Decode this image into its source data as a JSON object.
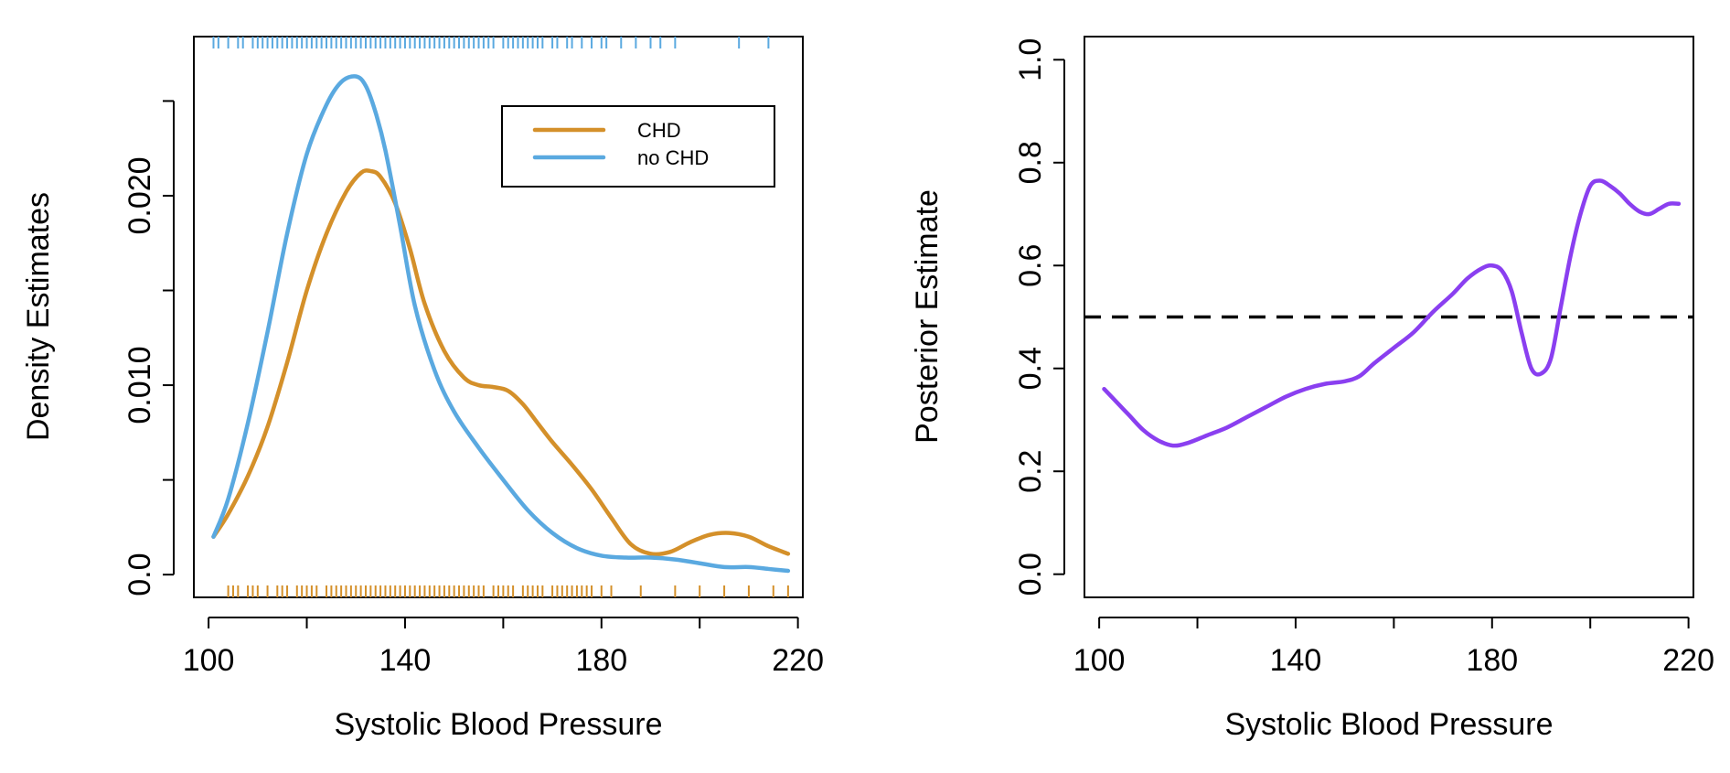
{
  "chart_data": [
    {
      "type": "line",
      "xlabel": "Systolic Blood Pressure",
      "ylabel": "Density Estimates",
      "xlim": [
        97,
        221
      ],
      "ylim": [
        -0.0012,
        0.0284
      ],
      "x_ticks": [
        100,
        120,
        140,
        160,
        180,
        200,
        220
      ],
      "x_tick_labels": [
        "100",
        "",
        "140",
        "",
        "180",
        "",
        "220"
      ],
      "y_ticks": [
        0.0,
        0.005,
        0.01,
        0.015,
        0.02,
        0.025
      ],
      "y_tick_labels": [
        "0.0",
        "",
        "0.010",
        "",
        "0.020",
        ""
      ],
      "legend": {
        "position": "top-right",
        "entries": [
          "CHD",
          "no CHD"
        ]
      },
      "series": [
        {
          "name": "CHD",
          "color": "#d4902a",
          "x": [
            101,
            104,
            108,
            112,
            116,
            120,
            124,
            128,
            131,
            133,
            135,
            138,
            141,
            144,
            148,
            152,
            155,
            158,
            161,
            164,
            167,
            170,
            174,
            178,
            182,
            186,
            190,
            194,
            198,
            202,
            206,
            210,
            214,
            218
          ],
          "y": [
            0.002,
            0.0032,
            0.0052,
            0.0078,
            0.0112,
            0.015,
            0.018,
            0.0202,
            0.0212,
            0.0213,
            0.021,
            0.0196,
            0.0172,
            0.0143,
            0.0118,
            0.0104,
            0.01,
            0.0099,
            0.0097,
            0.009,
            0.008,
            0.007,
            0.0058,
            0.0045,
            0.003,
            0.0016,
            0.0011,
            0.0012,
            0.0017,
            0.0021,
            0.0022,
            0.002,
            0.0015,
            0.0011
          ]
        },
        {
          "name": "no CHD",
          "color": "#5aa9e0",
          "x": [
            101,
            104,
            108,
            112,
            116,
            120,
            124,
            127,
            130,
            132,
            134,
            136,
            139,
            142,
            146,
            150,
            155,
            160,
            165,
            170,
            175,
            180,
            185,
            190,
            195,
            200,
            205,
            210,
            214,
            218
          ],
          "y": [
            0.002,
            0.004,
            0.008,
            0.0128,
            0.018,
            0.0222,
            0.0248,
            0.026,
            0.0263,
            0.0258,
            0.0244,
            0.0224,
            0.0184,
            0.0142,
            0.0108,
            0.0086,
            0.0067,
            0.005,
            0.0034,
            0.0022,
            0.0014,
            0.001,
            0.0009,
            0.0009,
            0.0008,
            0.0006,
            0.0004,
            0.0004,
            0.0003,
            0.0002
          ]
        }
      ],
      "rugs": [
        {
          "series": "no CHD",
          "side": "top",
          "color": "#5aa9e0",
          "values": [
            101,
            102,
            104,
            106,
            107,
            109,
            110,
            111,
            112,
            113,
            114,
            115,
            116,
            117,
            118,
            119,
            120,
            121,
            122,
            123,
            124,
            125,
            126,
            127,
            128,
            129,
            130,
            131,
            132,
            133,
            134,
            135,
            136,
            137,
            138,
            139,
            140,
            141,
            142,
            143,
            144,
            145,
            146,
            147,
            148,
            149,
            150,
            151,
            152,
            153,
            154,
            155,
            156,
            157,
            158,
            160,
            161,
            162,
            163,
            164,
            165,
            166,
            167,
            168,
            170,
            171,
            173,
            174,
            176,
            178,
            180,
            181,
            184,
            187,
            190,
            192,
            195,
            208,
            214
          ]
        },
        {
          "series": "CHD",
          "side": "bottom",
          "color": "#d4902a",
          "values": [
            104,
            105,
            106,
            108,
            109,
            110,
            112,
            114,
            115,
            116,
            118,
            119,
            120,
            121,
            122,
            124,
            125,
            126,
            127,
            128,
            129,
            130,
            131,
            132,
            133,
            134,
            135,
            136,
            137,
            138,
            139,
            140,
            141,
            142,
            143,
            144,
            145,
            146,
            147,
            148,
            149,
            150,
            151,
            152,
            153,
            154,
            155,
            156,
            158,
            159,
            160,
            161,
            162,
            164,
            165,
            166,
            167,
            168,
            170,
            171,
            172,
            173,
            174,
            175,
            176,
            177,
            178,
            180,
            182,
            188,
            195,
            200,
            205,
            210,
            215,
            218
          ]
        }
      ]
    },
    {
      "type": "line",
      "xlabel": "Systolic Blood Pressure",
      "ylabel": "Posterior Estimate",
      "xlim": [
        97,
        221
      ],
      "ylim": [
        -0.045,
        1.045
      ],
      "x_ticks": [
        100,
        120,
        140,
        160,
        180,
        200,
        220
      ],
      "x_tick_labels": [
        "100",
        "",
        "140",
        "",
        "180",
        "",
        "220"
      ],
      "y_ticks": [
        0.0,
        0.2,
        0.4,
        0.6,
        0.8,
        1.0
      ],
      "y_tick_labels": [
        "0.0",
        "0.2",
        "0.4",
        "0.6",
        "0.8",
        "1.0"
      ],
      "reference_line": {
        "y": 0.5,
        "style": "dashed",
        "color": "#000000"
      },
      "series": [
        {
          "color": "#8a3ff0",
          "x": [
            101,
            103,
            106,
            109,
            112,
            115,
            118,
            122,
            126,
            130,
            134,
            138,
            142,
            146,
            150,
            153,
            156,
            160,
            164,
            168,
            172,
            175,
            178,
            180,
            182,
            184,
            186,
            188,
            190,
            192,
            194,
            196,
            198,
            200,
            202,
            204,
            206,
            208,
            210,
            212,
            214,
            216,
            218
          ],
          "y": [
            0.36,
            0.34,
            0.31,
            0.28,
            0.26,
            0.25,
            0.255,
            0.27,
            0.285,
            0.305,
            0.325,
            0.345,
            0.36,
            0.37,
            0.375,
            0.385,
            0.41,
            0.44,
            0.47,
            0.51,
            0.545,
            0.575,
            0.595,
            0.6,
            0.59,
            0.55,
            0.47,
            0.4,
            0.39,
            0.42,
            0.52,
            0.62,
            0.7,
            0.755,
            0.765,
            0.755,
            0.74,
            0.72,
            0.705,
            0.7,
            0.71,
            0.72,
            0.72
          ]
        }
      ]
    }
  ]
}
